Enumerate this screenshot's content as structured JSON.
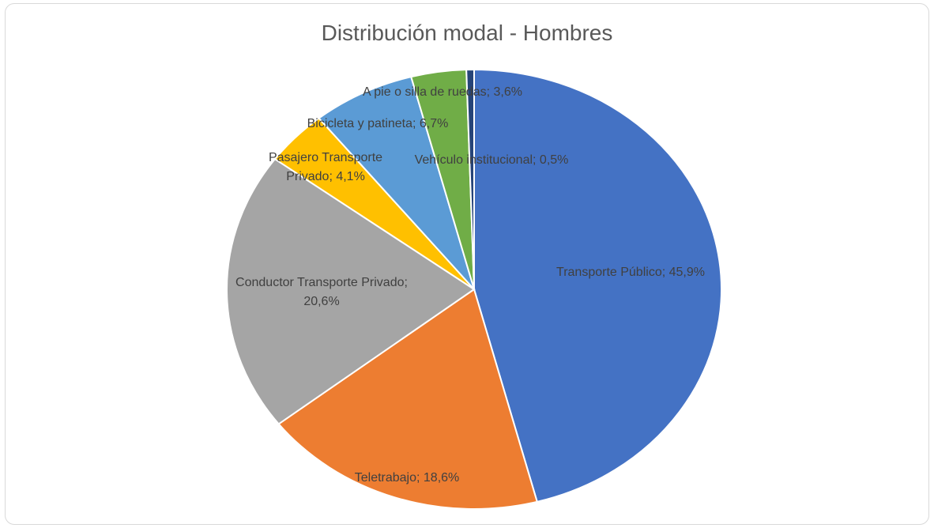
{
  "chart_data": {
    "type": "pie",
    "title": "Distribución modal - Hombres",
    "categories": [
      "Transporte Público",
      "Teletrabajo",
      "Conductor Transporte Privado",
      "Pasajero Transporte Privado",
      "Bicicleta y patineta",
      "A pie o silla de ruedas",
      "Vehículo institucional"
    ],
    "values": [
      45.9,
      18.6,
      20.6,
      4.1,
      6.7,
      3.6,
      0.5
    ],
    "value_labels": [
      "Transporte Público; 45,9%",
      "Teletrabajo; 18,6%",
      "Conductor Transporte Privado; 20,6%",
      "Pasajero Transporte Privado; 4,1%",
      "Bicicleta y patineta; 6,7%",
      "A pie o silla de ruedas; 3,6%",
      "Vehículo institucional; 0,5%"
    ],
    "colors": [
      "#4472c4",
      "#ed7d31",
      "#a5a5a5",
      "#ffc000",
      "#5b9bd5",
      "#70ad47",
      "#264478"
    ]
  }
}
